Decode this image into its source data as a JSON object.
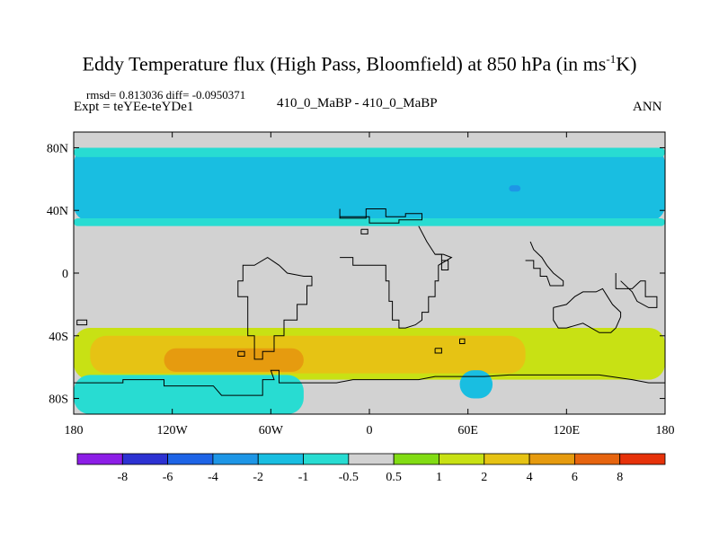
{
  "title": "Eddy Temperature flux (High Pass, Bloomfield) at 850 hPa (in ms",
  "title_sup": "-1",
  "title_end": "K)",
  "stats": "rmsd= 0.813036  diff= -0.0950371",
  "expt": "Expt = teYEe-teYDe1",
  "center_label": "410_0_MaBP - 410_0_MaBP",
  "season": "ANN",
  "chart_data": {
    "type": "heatmap",
    "xlim": [
      -180,
      180
    ],
    "ylim": [
      -90,
      90
    ],
    "x_ticks": [
      {
        "value": -180,
        "label": "180"
      },
      {
        "value": -120,
        "label": "120W"
      },
      {
        "value": -60,
        "label": "60W"
      },
      {
        "value": 0,
        "label": "0"
      },
      {
        "value": 60,
        "label": "60E"
      },
      {
        "value": 120,
        "label": "120E"
      },
      {
        "value": 180,
        "label": "180"
      }
    ],
    "y_ticks": [
      {
        "value": 80,
        "label": "80N"
      },
      {
        "value": 40,
        "label": "40N"
      },
      {
        "value": 0,
        "label": "0"
      },
      {
        "value": -40,
        "label": "40S"
      },
      {
        "value": -80,
        "label": "80S"
      }
    ],
    "colorbar": {
      "labels": [
        "-8",
        "-6",
        "-4",
        "-2",
        "-1",
        "-0.5",
        "0.5",
        "1",
        "2",
        "4",
        "6",
        "8"
      ],
      "colors": [
        "#8c1ee6",
        "#2d32d2",
        "#1e64e6",
        "#1e96e6",
        "#19bee1",
        "#28dcd2",
        "#d2d2d2",
        "#82dc14",
        "#c8e114",
        "#e6c314",
        "#e69b0f",
        "#e6640f",
        "#e6320a"
      ]
    },
    "background_color": "#d2d2d2",
    "regions": [
      {
        "level": "-1",
        "lon": [
          -180,
          180
        ],
        "lat": [
          33,
          80
        ]
      },
      {
        "level": "-0.5",
        "lon": [
          -180,
          180
        ],
        "lat": [
          30,
          35
        ]
      },
      {
        "level": "-0.5",
        "lon": [
          -180,
          180
        ],
        "lat": [
          74,
          80
        ]
      },
      {
        "level": "-2",
        "lon": [
          85,
          92
        ],
        "lat": [
          52,
          56
        ]
      },
      {
        "level": "1",
        "lon": [
          -180,
          180
        ],
        "lat": [
          -68,
          -35
        ]
      },
      {
        "level": "2",
        "lon": [
          -170,
          95
        ],
        "lat": [
          -64,
          -40
        ]
      },
      {
        "level": "4",
        "lon": [
          -125,
          -40
        ],
        "lat": [
          -63,
          -48
        ]
      },
      {
        "level": "-1",
        "lon": [
          -160,
          -60
        ],
        "lat": [
          -90,
          -70
        ]
      },
      {
        "level": "-0.5",
        "lon": [
          -180,
          -40
        ],
        "lat": [
          -90,
          -65
        ]
      },
      {
        "level": "-1",
        "lon": [
          55,
          75
        ],
        "lat": [
          -80,
          -62
        ]
      }
    ],
    "coastlines": [
      [
        [
          -18,
          41
        ],
        [
          -18,
          35
        ],
        [
          -2,
          35
        ],
        [
          -2,
          41
        ],
        [
          10,
          41
        ],
        [
          10,
          36
        ],
        [
          22,
          36
        ],
        [
          22,
          38
        ],
        [
          32,
          38
        ],
        [
          32,
          34
        ],
        [
          18,
          34
        ],
        [
          18,
          32
        ],
        [
          0,
          32
        ],
        [
          0,
          36
        ],
        [
          -18,
          36
        ],
        [
          -18,
          41
        ]
      ],
      [
        [
          -35,
          -2
        ],
        [
          -35,
          -8
        ],
        [
          -38,
          -8
        ],
        [
          -38,
          -20
        ],
        [
          -44,
          -20
        ],
        [
          -44,
          -30
        ],
        [
          -52,
          -30
        ],
        [
          -52,
          -40
        ],
        [
          -58,
          -40
        ],
        [
          -58,
          -50
        ],
        [
          -65,
          -50
        ],
        [
          -65,
          -55
        ],
        [
          -70,
          -55
        ],
        [
          -70,
          -40
        ],
        [
          -74,
          -40
        ],
        [
          -74,
          -15
        ],
        [
          -80,
          -15
        ],
        [
          -80,
          -5
        ],
        [
          -77,
          -5
        ],
        [
          -77,
          5
        ],
        [
          -70,
          5
        ],
        [
          -62,
          10
        ],
        [
          -55,
          5
        ],
        [
          -50,
          0
        ],
        [
          -40,
          -2
        ],
        [
          -35,
          -2
        ]
      ],
      [
        [
          -18,
          10
        ],
        [
          -10,
          10
        ],
        [
          -10,
          5
        ],
        [
          0,
          5
        ],
        [
          10,
          5
        ],
        [
          10,
          -5
        ],
        [
          12,
          -5
        ],
        [
          12,
          -18
        ],
        [
          14,
          -18
        ],
        [
          14,
          -30
        ],
        [
          18,
          -30
        ],
        [
          18,
          -35
        ],
        [
          22,
          -35
        ],
        [
          28,
          -33
        ],
        [
          32,
          -30
        ],
        [
          32,
          -25
        ],
        [
          36,
          -25
        ],
        [
          36,
          -15
        ],
        [
          40,
          -15
        ],
        [
          40,
          -5
        ],
        [
          42,
          -5
        ],
        [
          42,
          5
        ],
        [
          50,
          10
        ],
        [
          45,
          12
        ],
        [
          40,
          12
        ],
        [
          35,
          20
        ],
        [
          30,
          30
        ]
      ],
      [
        [
          95,
          8
        ],
        [
          100,
          8
        ],
        [
          100,
          3
        ],
        [
          104,
          3
        ],
        [
          104,
          -2
        ],
        [
          108,
          -2
        ],
        [
          110,
          -8
        ],
        [
          118,
          -8
        ],
        [
          118,
          -5
        ],
        [
          112,
          0
        ],
        [
          108,
          5
        ],
        [
          105,
          10
        ],
        [
          100,
          15
        ],
        [
          98,
          20
        ]
      ],
      [
        [
          112,
          -22
        ],
        [
          112,
          -30
        ],
        [
          115,
          -35
        ],
        [
          120,
          -35
        ],
        [
          130,
          -32
        ],
        [
          135,
          -35
        ],
        [
          140,
          -38
        ],
        [
          147,
          -38
        ],
        [
          150,
          -35
        ],
        [
          153,
          -28
        ],
        [
          153,
          -25
        ],
        [
          148,
          -20
        ],
        [
          145,
          -15
        ],
        [
          142,
          -10
        ],
        [
          138,
          -12
        ],
        [
          135,
          -12
        ],
        [
          130,
          -12
        ],
        [
          125,
          -15
        ],
        [
          120,
          -20
        ],
        [
          112,
          -22
        ]
      ],
      [
        [
          150,
          0
        ],
        [
          150,
          -10
        ],
        [
          160,
          -10
        ],
        [
          165,
          -5
        ],
        [
          168,
          -5
        ],
        [
          168,
          -15
        ],
        [
          175,
          -15
        ],
        [
          175,
          -22
        ],
        [
          170,
          -22
        ],
        [
          163,
          -18
        ],
        [
          160,
          -12
        ],
        [
          153,
          -5
        ]
      ],
      [
        [
          -180,
          -70
        ],
        [
          -150,
          -70
        ],
        [
          -150,
          -68
        ],
        [
          -125,
          -68
        ],
        [
          -125,
          -72
        ],
        [
          -95,
          -72
        ],
        [
          -90,
          -78
        ],
        [
          -65,
          -78
        ],
        [
          -65,
          -68
        ],
        [
          -58,
          -68
        ],
        [
          -60,
          -62
        ],
        [
          -55,
          -62
        ],
        [
          -55,
          -70
        ],
        [
          -40,
          -70
        ],
        [
          -20,
          -70
        ],
        [
          -10,
          -68
        ],
        [
          0,
          -68
        ],
        [
          20,
          -68
        ],
        [
          30,
          -68
        ],
        [
          40,
          -66
        ],
        [
          60,
          -66
        ],
        [
          70,
          -66
        ],
        [
          85,
          -65
        ],
        [
          100,
          -65
        ],
        [
          120,
          -65
        ],
        [
          140,
          -65
        ],
        [
          160,
          -68
        ],
        [
          170,
          -70
        ],
        [
          180,
          -70
        ]
      ],
      [
        [
          -178,
          -30
        ],
        [
          -172,
          -30
        ],
        [
          -172,
          -33
        ],
        [
          -178,
          -33
        ],
        [
          -178,
          -30
        ]
      ],
      [
        [
          -80,
          -50
        ],
        [
          -76,
          -50
        ],
        [
          -76,
          -53
        ],
        [
          -80,
          -53
        ],
        [
          -80,
          -50
        ]
      ],
      [
        [
          40,
          -48
        ],
        [
          44,
          -48
        ],
        [
          44,
          -51
        ],
        [
          40,
          -51
        ],
        [
          40,
          -48
        ]
      ],
      [
        [
          55,
          -42
        ],
        [
          58,
          -42
        ],
        [
          58,
          -45
        ],
        [
          55,
          -45
        ],
        [
          55,
          -42
        ]
      ],
      [
        [
          -5,
          28
        ],
        [
          -1,
          28
        ],
        [
          -1,
          25
        ],
        [
          -5,
          25
        ],
        [
          -5,
          28
        ]
      ],
      [
        [
          40,
          12
        ],
        [
          44,
          12
        ],
        [
          44,
          8
        ],
        [
          48,
          8
        ],
        [
          48,
          2
        ],
        [
          44,
          2
        ],
        [
          44,
          12
        ]
      ]
    ]
  }
}
